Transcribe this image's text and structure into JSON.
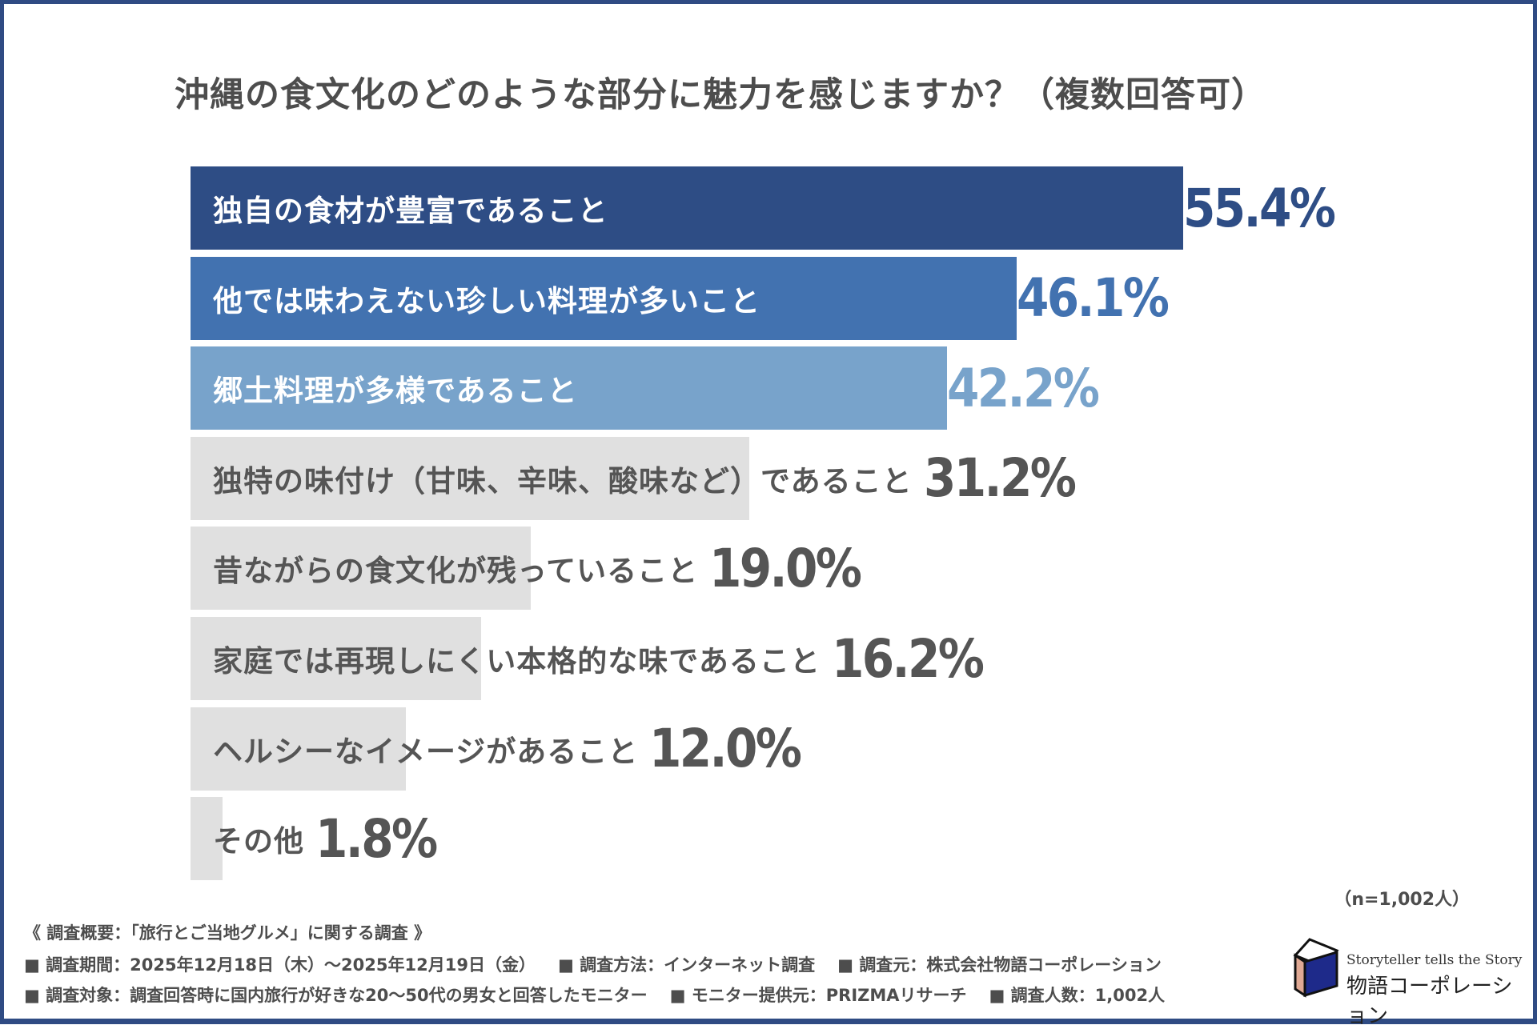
{
  "chart_data": {
    "type": "bar",
    "orientation": "horizontal",
    "title": "沖縄の食文化のどのような部分に魅力を感じますか？（複数回答可）",
    "categories": [
      "独自の食材が豊富であること",
      "他では味わえない珍しい料理が多いこと",
      "郷土料理が多様であること",
      "独特の味付け（甘味、辛味、酸味など）であること",
      "昔ながらの食文化が残っていること",
      "家庭では再現しにくい本格的な味であること",
      "ヘルシーなイメージがあること",
      "その他"
    ],
    "values": [
      55.4,
      46.1,
      42.2,
      31.2,
      19.0,
      16.2,
      12.0,
      1.8
    ],
    "value_labels": [
      "55.4%",
      "46.1%",
      "42.2%",
      "31.2%",
      "19.0%",
      "16.2%",
      "12.0%",
      "1.8%"
    ],
    "unit": "%",
    "bar_colors": [
      "#2e4d85",
      "#4272b0",
      "#78a3cb",
      "#e0e0e0",
      "#e0e0e0",
      "#e0e0e0",
      "#e0e0e0",
      "#e0e0e0"
    ],
    "label_colors": [
      "#ffffff",
      "#ffffff",
      "#ffffff",
      "#555555",
      "#555555",
      "#555555",
      "#555555",
      "#555555"
    ],
    "value_colors": [
      "#2e4d85",
      "#4272b0",
      "#78a3cb",
      "#555555",
      "#555555",
      "#555555",
      "#555555",
      "#555555"
    ],
    "grid": false,
    "legend": "none"
  },
  "sample_size": "（n=1,002人）",
  "footer": {
    "heading": "《 調査概要：「旅行とご当地グルメ」に関する調査 》",
    "line1": [
      "■ 調査期間：2025年12月18日（木）～2025年12月19日（金）",
      "■ 調査方法：インターネット調査",
      "■ 調査元：株式会社物語コーポレーション"
    ],
    "line2": [
      "■ 調査対象：調査回答時に国内旅行が好きな20～50代の男女と回答したモニター",
      "■ モニター提供元：PRIZMAリサーチ",
      "■ 調査人数：1,002人"
    ]
  },
  "logo": {
    "tagline": "Storyteller tells the Story",
    "name": "物語コーポレーション"
  },
  "colors": {
    "frame": "#2f4b83"
  }
}
